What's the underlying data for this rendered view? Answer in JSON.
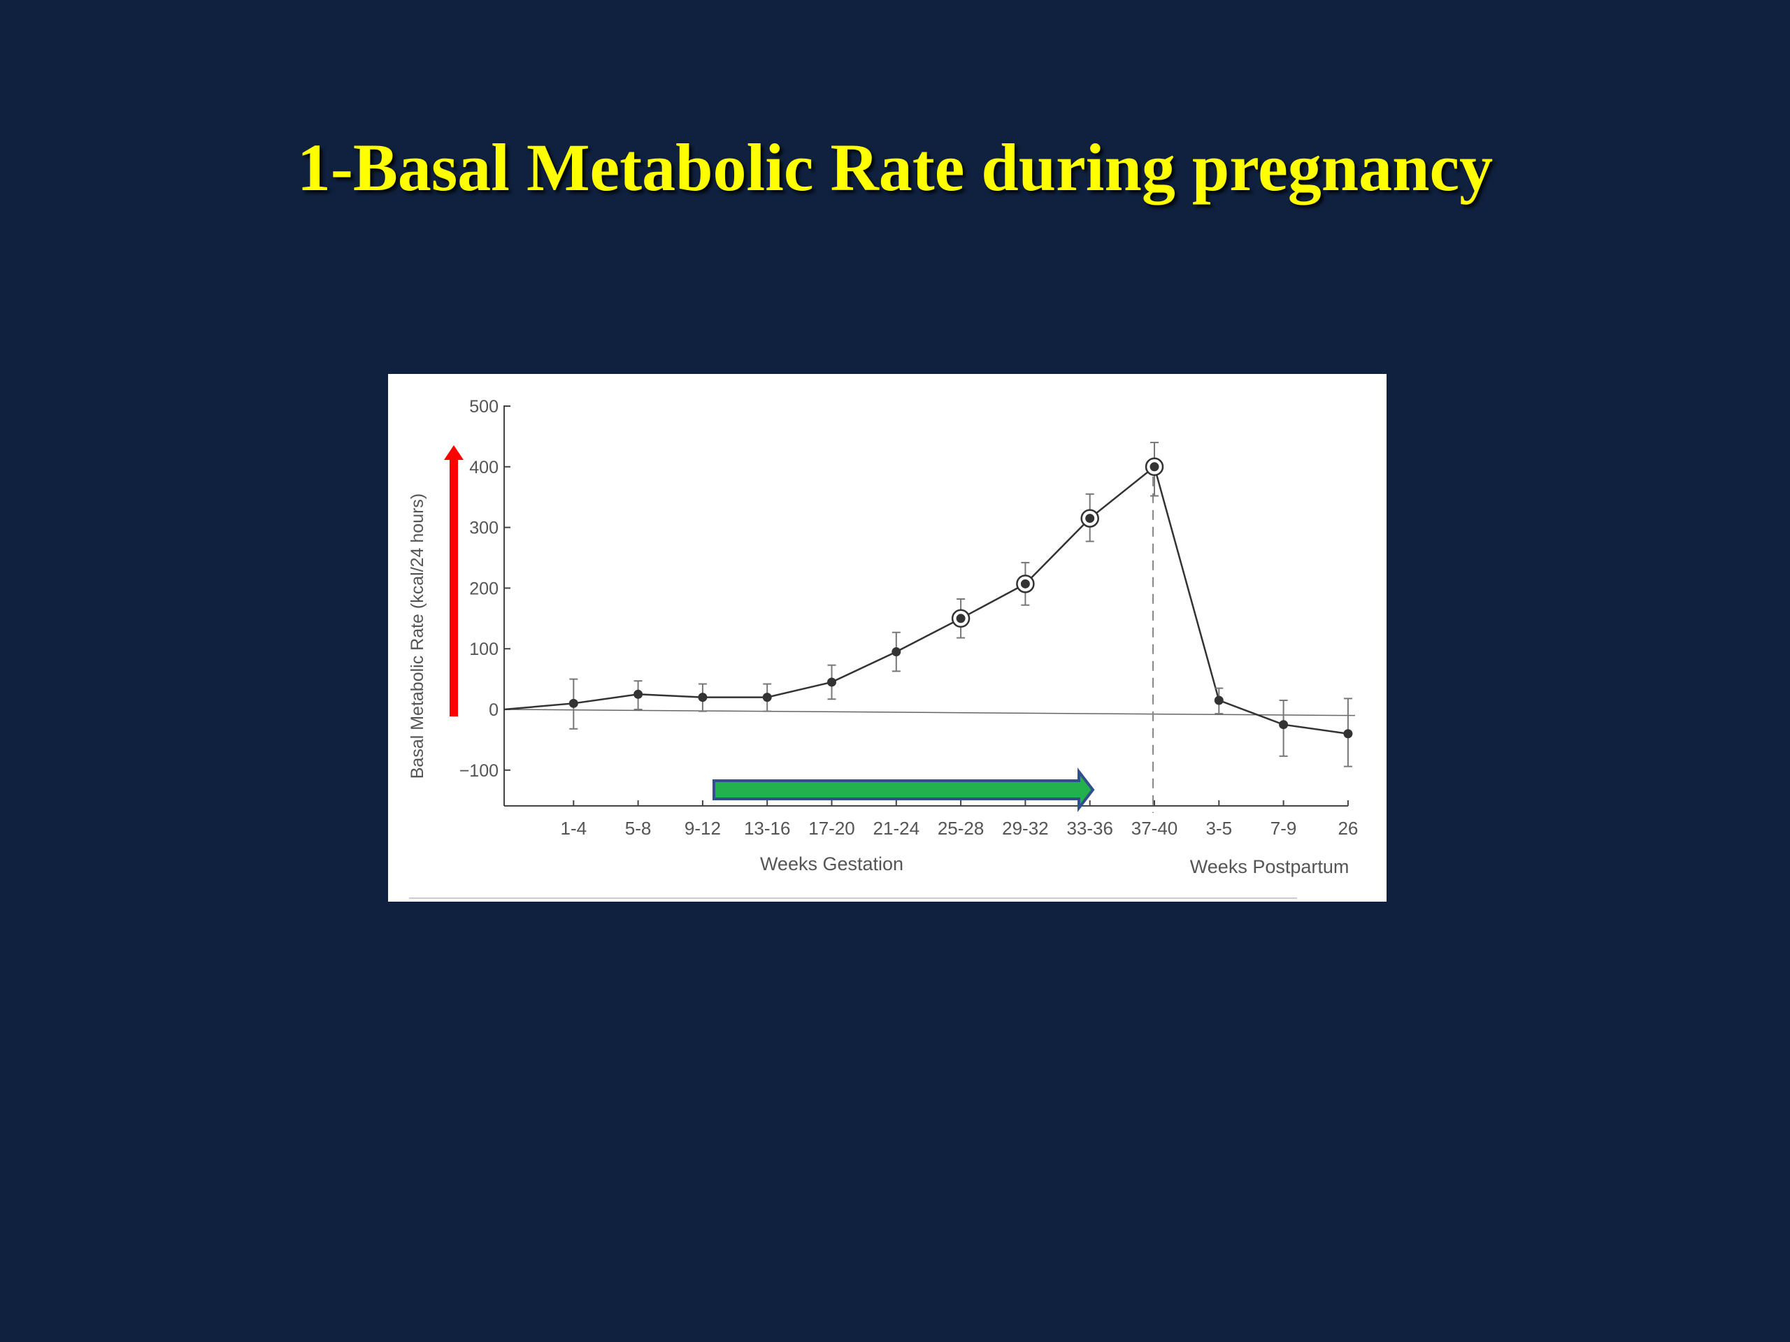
{
  "slide": {
    "title": "1-Basal Metabolic Rate during pregnancy",
    "background": "#0f213f",
    "title_color": "#ffff00"
  },
  "chart_data": {
    "type": "line",
    "title": "",
    "ylabel": "Basal Metabolic Rate (kcal/24 hours)",
    "xlabel_groups": [
      "Weeks Gestation",
      "Weeks Postpartum"
    ],
    "categories": [
      "1-4",
      "5-8",
      "9-12",
      "13-16",
      "17-20",
      "21-24",
      "25-28",
      "29-32",
      "33-36",
      "37-40",
      "3-5",
      "7-9",
      "26"
    ],
    "ylim": [
      -150,
      500
    ],
    "yticks": [
      500,
      400,
      300,
      200,
      100,
      0,
      -100
    ],
    "ytick_labels": [
      "500",
      "400",
      "300",
      "200",
      "100",
      "0",
      "−100"
    ],
    "start_value": 0,
    "series": [
      {
        "values": [
          10,
          25,
          20,
          20,
          45,
          95,
          150,
          207,
          315,
          400,
          15,
          -25,
          -40
        ],
        "error_plus": [
          40,
          22,
          22,
          22,
          28,
          32,
          32,
          35,
          40,
          40,
          20,
          40,
          58
        ],
        "error_minus": [
          42,
          25,
          23,
          23,
          28,
          32,
          32,
          35,
          38,
          48,
          22,
          52,
          54
        ],
        "highlighted": [
          false,
          false,
          false,
          false,
          false,
          false,
          true,
          true,
          true,
          true,
          false,
          false,
          false
        ]
      }
    ],
    "reference_line": {
      "from_value": 0,
      "to_value": -10
    },
    "divider_after_category": "37-40",
    "annotations": {
      "red_arrow_color": "#ff0000",
      "green_arrow_fill": "#22b14c",
      "green_arrow_border": "#2f4f8f"
    },
    "grid": false
  }
}
